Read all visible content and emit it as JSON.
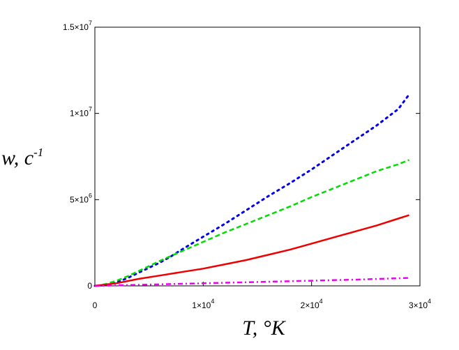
{
  "chart_data": {
    "type": "line",
    "xlabel": "T, °K",
    "ylabel": "w, c",
    "ylabel_superscript": "-1",
    "xlim": [
      0,
      30000
    ],
    "ylim": [
      0,
      15000000
    ],
    "x_ticks": [
      {
        "value": 0,
        "mantissa": "0",
        "exp": ""
      },
      {
        "value": 10000,
        "mantissa": "1×10",
        "exp": "4"
      },
      {
        "value": 20000,
        "mantissa": "2×10",
        "exp": "4"
      },
      {
        "value": 30000,
        "mantissa": "3×10",
        "exp": "4"
      }
    ],
    "y_ticks": [
      {
        "value": 0,
        "mantissa": "0",
        "exp": ""
      },
      {
        "value": 5000000,
        "mantissa": "5×10",
        "exp": "6"
      },
      {
        "value": 10000000,
        "mantissa": "1×10",
        "exp": "7"
      },
      {
        "value": 15000000,
        "mantissa": "1.5×10",
        "exp": "7"
      }
    ],
    "grid": false,
    "legend": "none",
    "series": [
      {
        "style": "dotted",
        "color": "#0000ee",
        "x": [
          0,
          1000,
          2000,
          3000,
          4000,
          5000,
          6000,
          7000,
          8000,
          10000,
          12000,
          14000,
          16000,
          18000,
          20000,
          22000,
          24000,
          26000,
          28000,
          29000
        ],
        "y": [
          0,
          50000,
          200000,
          450000,
          750000,
          1050000,
          1350000,
          1700000,
          2100000,
          2850000,
          3600000,
          4400000,
          5200000,
          5950000,
          6750000,
          7600000,
          8450000,
          9300000,
          10250000,
          11100000
        ]
      },
      {
        "style": "dashed",
        "color": "#00dd00",
        "x": [
          0,
          1000,
          2000,
          3000,
          4000,
          5000,
          6000,
          8000,
          10000,
          12000,
          14000,
          16000,
          18000,
          20000,
          22000,
          24000,
          26000,
          28000,
          29000
        ],
        "y": [
          0,
          100000,
          300000,
          550000,
          850000,
          1150000,
          1450000,
          2000000,
          2550000,
          3100000,
          3600000,
          4100000,
          4600000,
          5150000,
          5650000,
          6150000,
          6650000,
          7050000,
          7300000
        ]
      },
      {
        "style": "solid",
        "color": "#ee0000",
        "x": [
          0,
          2000,
          4000,
          6000,
          8000,
          10000,
          12000,
          14000,
          16000,
          18000,
          20000,
          22000,
          24000,
          26000,
          28000,
          29000
        ],
        "y": [
          0,
          150000,
          400000,
          600000,
          800000,
          1000000,
          1250000,
          1500000,
          1800000,
          2100000,
          2450000,
          2800000,
          3150000,
          3500000,
          3900000,
          4100000
        ]
      },
      {
        "style": "dash-dot",
        "color": "#ee00ee",
        "x": [
          0,
          2000,
          4000,
          6000,
          8000,
          10000,
          12000,
          14000,
          16000,
          18000,
          20000,
          22000,
          24000,
          26000,
          28000,
          29000
        ],
        "y": [
          0,
          30000,
          60000,
          90000,
          120000,
          150000,
          180000,
          210000,
          240000,
          270000,
          300000,
          330000,
          360000,
          400000,
          440000,
          460000
        ]
      }
    ]
  }
}
